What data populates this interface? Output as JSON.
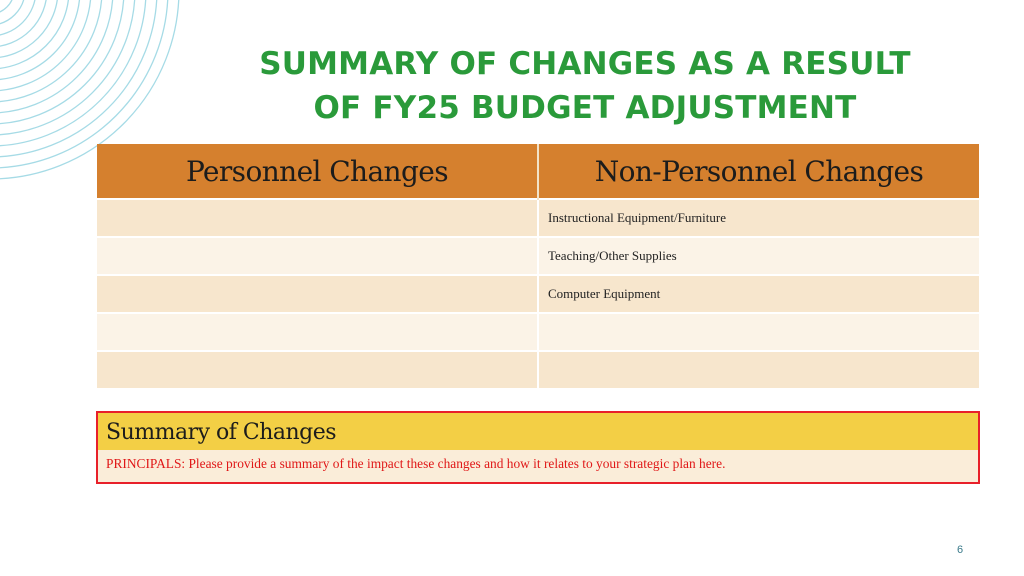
{
  "slide": {
    "title_line1": "SUMMARY OF CHANGES AS A RESULT",
    "title_line2": "OF FY25 BUDGET ADJUSTMENT",
    "page_number": "6"
  },
  "changes_table": {
    "headers": [
      "Personnel Changes",
      "Non-Personnel Changes"
    ],
    "rows": [
      [
        "",
        "Instructional Equipment/Furniture"
      ],
      [
        "",
        "Teaching/Other Supplies"
      ],
      [
        "",
        "Computer Equipment"
      ],
      [
        "",
        ""
      ],
      [
        "",
        ""
      ]
    ]
  },
  "summary": {
    "heading": "Summary of Changes",
    "body": "PRINCIPALS: Please provide a summary of the impact these changes and how it relates to your strategic plan here."
  },
  "colors": {
    "title": "#2a9a3a",
    "header_fill": "#d5802e",
    "row_odd": "#f7e6cd",
    "row_even": "#fbf3e7",
    "summary_border": "#e8202a",
    "summary_head_fill": "#f3cf45",
    "summary_text": "#e01818",
    "decorative_arcs": "#9fd8e4"
  }
}
